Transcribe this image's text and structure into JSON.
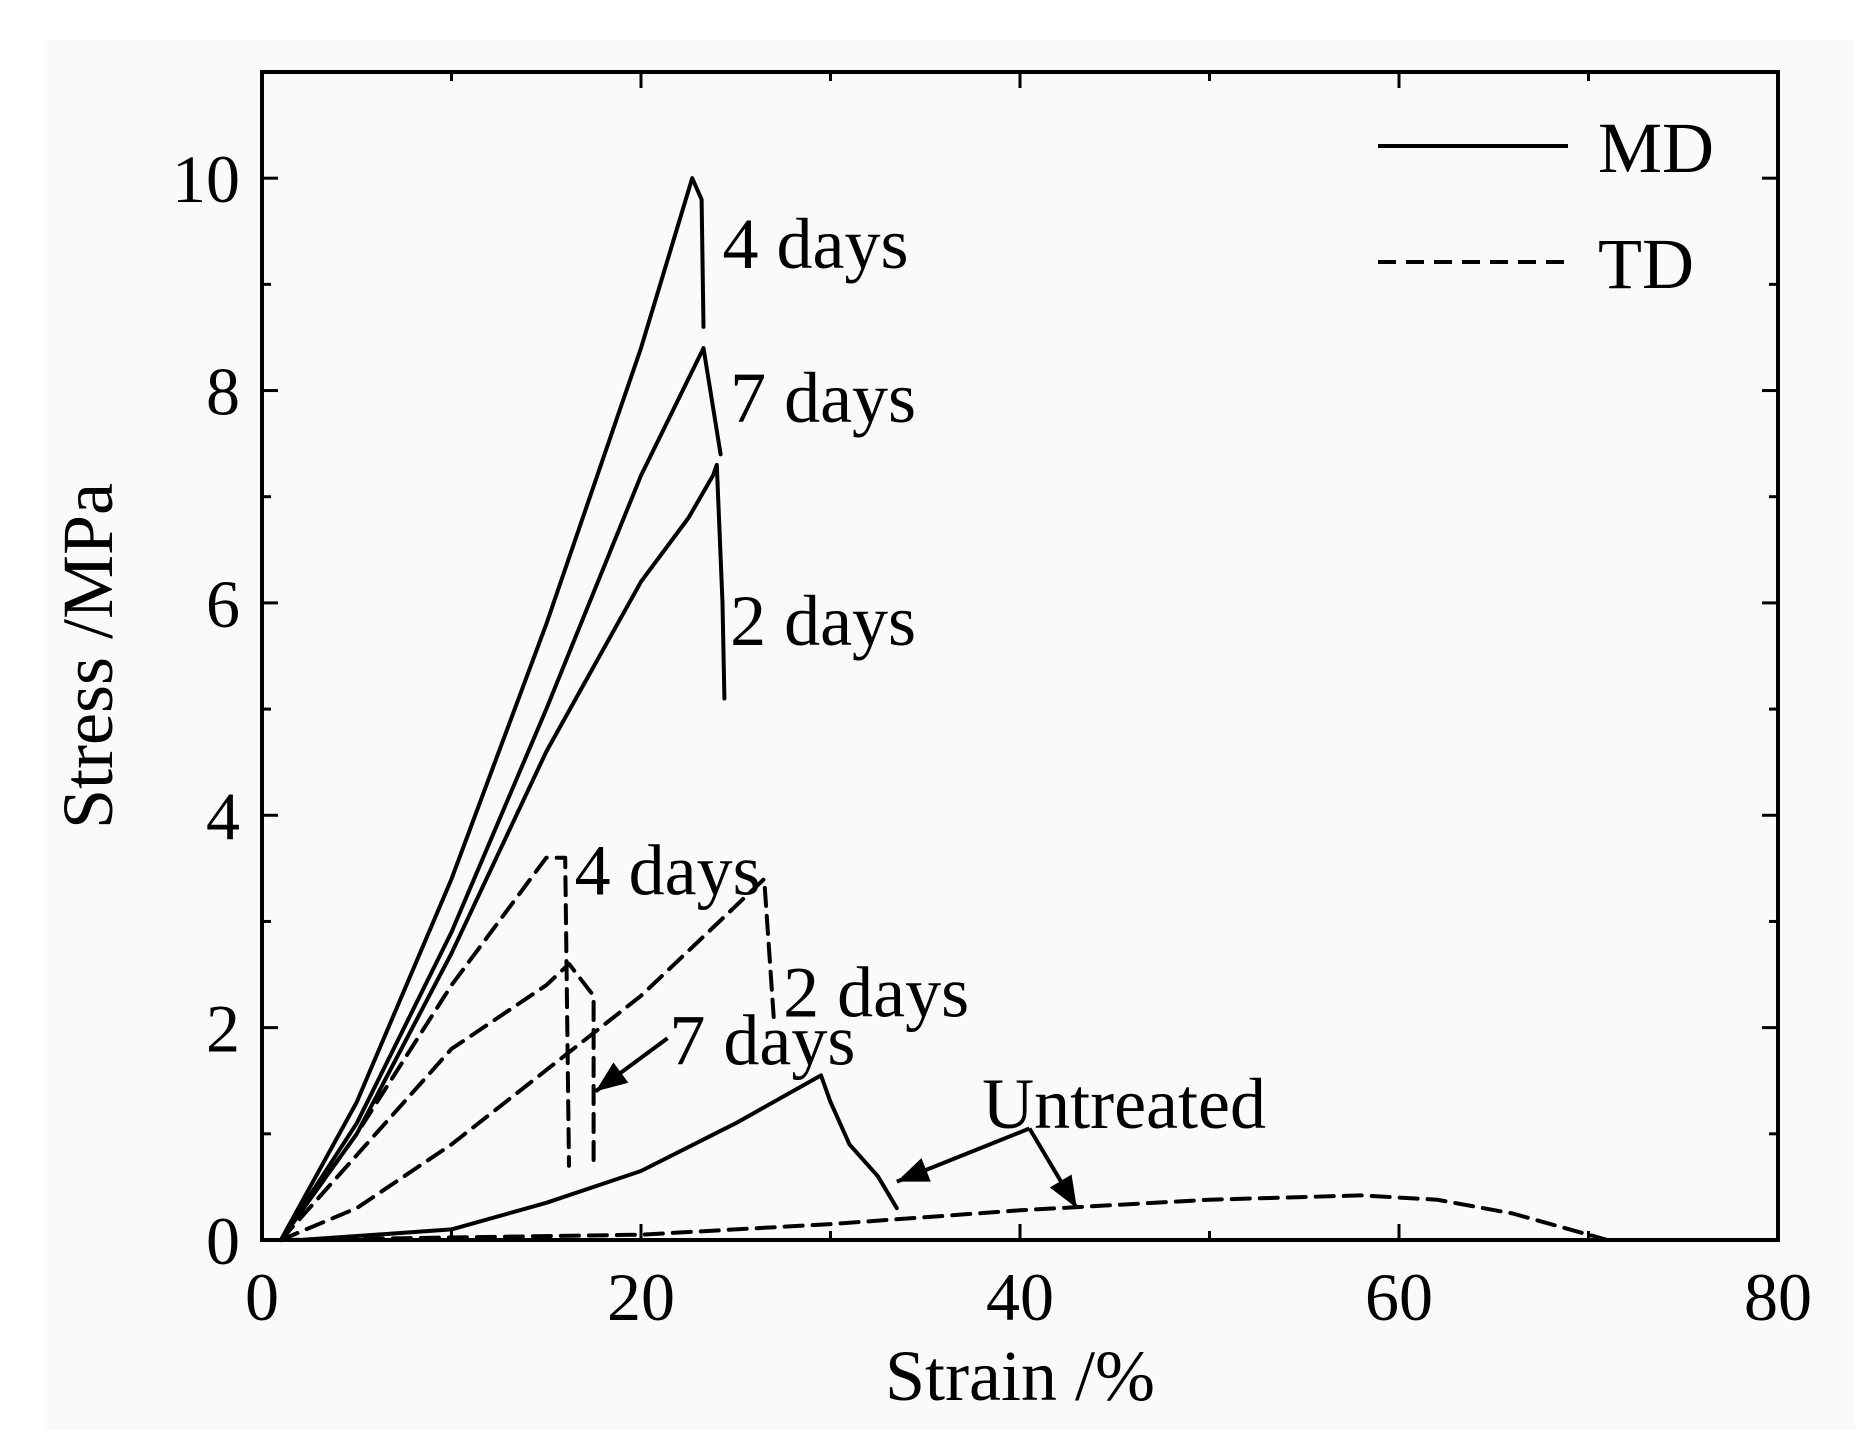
{
  "chart_data": {
    "type": "line",
    "xlabel": "Strain /%",
    "ylabel": "Stress /MPa",
    "xlim": [
      0,
      80
    ],
    "ylim": [
      0,
      11
    ],
    "xticks": [
      0,
      20,
      40,
      60,
      80
    ],
    "yticks": [
      0,
      2,
      4,
      6,
      8,
      10
    ],
    "grid": false,
    "legend": {
      "placement": "top-right",
      "entries": [
        {
          "label": "MD",
          "style": "solid"
        },
        {
          "label": "TD",
          "style": "dashed"
        }
      ]
    },
    "series": [
      {
        "name": "MD 4 days",
        "style": "solid",
        "points": [
          [
            1,
            0
          ],
          [
            5,
            1.3
          ],
          [
            10,
            3.4
          ],
          [
            15,
            5.8
          ],
          [
            20,
            8.4
          ],
          [
            22.7,
            10.0
          ],
          [
            23.2,
            9.8
          ],
          [
            23.3,
            8.6
          ]
        ]
      },
      {
        "name": "MD 7 days",
        "style": "solid",
        "points": [
          [
            1,
            0
          ],
          [
            5,
            1.1
          ],
          [
            10,
            2.9
          ],
          [
            15,
            5.0
          ],
          [
            20,
            7.2
          ],
          [
            23.3,
            8.4
          ],
          [
            24.2,
            7.4
          ]
        ]
      },
      {
        "name": "MD 2 days",
        "style": "solid",
        "points": [
          [
            1,
            0
          ],
          [
            5,
            1.0
          ],
          [
            10,
            2.7
          ],
          [
            15,
            4.6
          ],
          [
            20,
            6.2
          ],
          [
            22.5,
            6.8
          ],
          [
            23.8,
            7.2
          ],
          [
            24.0,
            7.3
          ],
          [
            24.3,
            6.0
          ],
          [
            24.4,
            5.1
          ]
        ]
      },
      {
        "name": "TD 4 days",
        "style": "dashed",
        "points": [
          [
            1,
            0
          ],
          [
            5,
            1.0
          ],
          [
            10,
            2.4
          ],
          [
            15,
            3.6
          ],
          [
            16,
            3.6
          ],
          [
            16.2,
            0.7
          ]
        ]
      },
      {
        "name": "TD 7 days",
        "style": "dashed",
        "points": [
          [
            1,
            0
          ],
          [
            5,
            0.8
          ],
          [
            10,
            1.8
          ],
          [
            15,
            2.4
          ],
          [
            16.2,
            2.6
          ],
          [
            17.5,
            2.3
          ],
          [
            17.5,
            0.7
          ]
        ]
      },
      {
        "name": "TD 2 days",
        "style": "dashed",
        "points": [
          [
            1,
            0
          ],
          [
            5,
            0.3
          ],
          [
            10,
            0.9
          ],
          [
            15,
            1.6
          ],
          [
            20,
            2.3
          ],
          [
            26.5,
            3.4
          ],
          [
            27,
            2.1
          ]
        ]
      },
      {
        "name": "MD Untreated",
        "style": "solid",
        "points": [
          [
            2,
            0
          ],
          [
            10,
            0.1
          ],
          [
            15,
            0.35
          ],
          [
            20,
            0.65
          ],
          [
            25,
            1.1
          ],
          [
            29.5,
            1.55
          ],
          [
            30,
            1.3
          ],
          [
            31,
            0.9
          ],
          [
            32.5,
            0.6
          ],
          [
            33.5,
            0.3
          ]
        ]
      },
      {
        "name": "TD Untreated",
        "style": "dashed",
        "points": [
          [
            1,
            0
          ],
          [
            20,
            0.05
          ],
          [
            30,
            0.15
          ],
          [
            40,
            0.28
          ],
          [
            50,
            0.38
          ],
          [
            58,
            0.42
          ],
          [
            62,
            0.38
          ],
          [
            66,
            0.25
          ],
          [
            70,
            0.05
          ],
          [
            71,
            0
          ]
        ]
      }
    ],
    "annotations": [
      {
        "text": "4 days",
        "series": "MD 4 days",
        "x": 24.3,
        "y": 9.4
      },
      {
        "text": "7 days",
        "series": "MD 7 days",
        "x": 24.7,
        "y": 7.95
      },
      {
        "text": "2 days",
        "series": "MD 2 days",
        "x": 24.7,
        "y": 5.85
      },
      {
        "text": "4 days",
        "series": "TD 4 days",
        "x": 16.5,
        "y": 3.5
      },
      {
        "text": "2 days",
        "series": "TD 2 days",
        "x": 27.5,
        "y": 2.35
      },
      {
        "text": "7 days",
        "series": "TD 7 days",
        "x": 21.5,
        "y": 1.9
      },
      {
        "text": "Untreated",
        "series": "MD/TD Untreated",
        "x": 38,
        "y": 1.3
      }
    ],
    "arrows": [
      {
        "name": "arrow-td-7days",
        "from": [
          21.4,
          1.9
        ],
        "to": [
          17.6,
          1.4
        ]
      },
      {
        "name": "arrow-untreated-md",
        "from": [
          40.5,
          1.05
        ],
        "to": [
          33.5,
          0.55
        ]
      },
      {
        "name": "arrow-untreated-td",
        "from": [
          40.5,
          1.05
        ],
        "to": [
          43,
          0.3
        ]
      }
    ]
  }
}
